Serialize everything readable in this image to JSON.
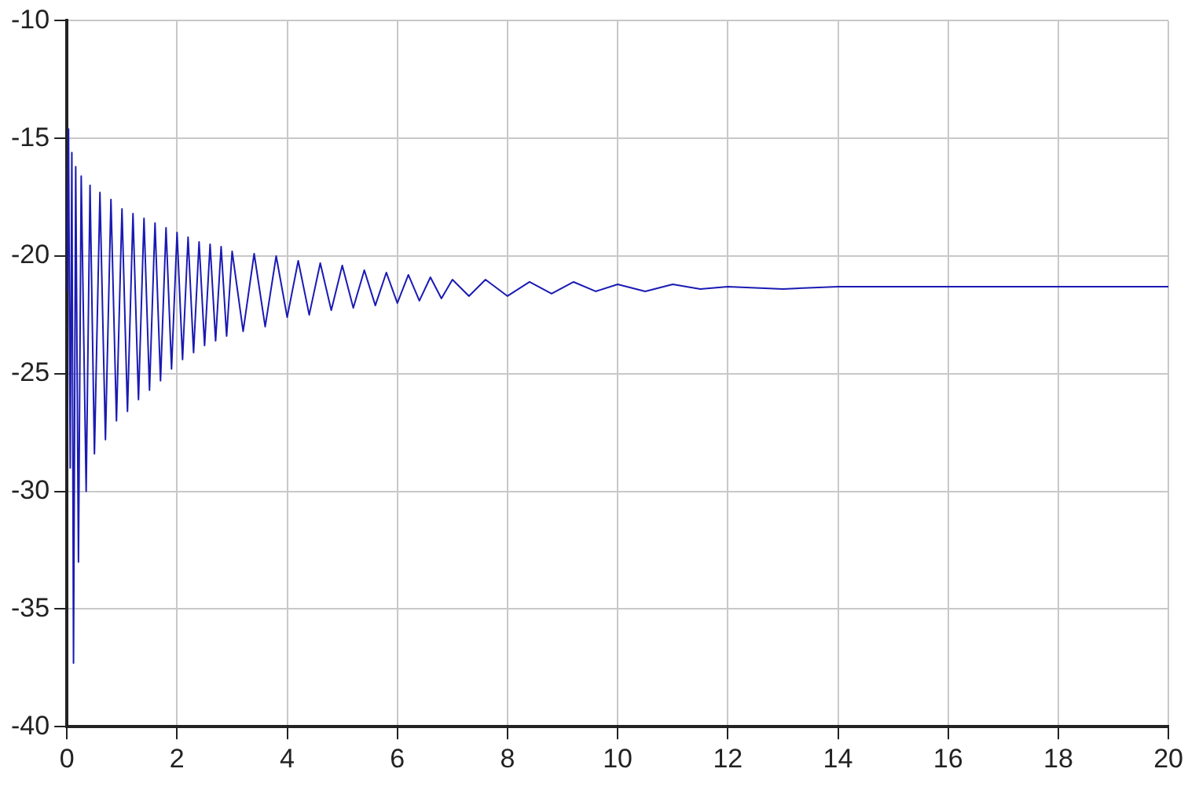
{
  "chart_data": {
    "type": "line",
    "x": [
      0,
      0.03,
      0.06,
      0.09,
      0.12,
      0.16,
      0.21,
      0.26,
      0.35,
      0.42,
      0.5,
      0.6,
      0.7,
      0.8,
      0.9,
      1.0,
      1.1,
      1.2,
      1.3,
      1.4,
      1.5,
      1.6,
      1.7,
      1.8,
      1.9,
      2.0,
      2.1,
      2.2,
      2.3,
      2.4,
      2.5,
      2.6,
      2.7,
      2.8,
      2.9,
      3.0,
      3.2,
      3.4,
      3.6,
      3.8,
      4.0,
      4.2,
      4.4,
      4.6,
      4.8,
      5.0,
      5.2,
      5.4,
      5.6,
      5.8,
      6.0,
      6.2,
      6.4,
      6.6,
      6.8,
      7.0,
      7.3,
      7.6,
      8.0,
      8.4,
      8.8,
      9.2,
      9.6,
      10.0,
      10.5,
      11,
      11.5,
      12,
      13,
      14,
      16,
      18,
      20
    ],
    "series": [
      {
        "color": "#1a1ab4",
        "values": [
          -21.5,
          -14.6,
          -29.0,
          -15.6,
          -37.3,
          -16.2,
          -33.0,
          -16.6,
          -30.0,
          -17.0,
          -28.4,
          -17.3,
          -27.8,
          -17.6,
          -27.0,
          -18.0,
          -26.6,
          -18.2,
          -26.1,
          -18.4,
          -25.7,
          -18.6,
          -25.3,
          -18.8,
          -24.8,
          -19.0,
          -24.4,
          -19.2,
          -24.1,
          -19.4,
          -23.8,
          -19.5,
          -23.6,
          -19.6,
          -23.4,
          -19.8,
          -23.2,
          -19.9,
          -23.0,
          -20.0,
          -22.6,
          -20.2,
          -22.5,
          -20.3,
          -22.3,
          -20.4,
          -22.2,
          -20.6,
          -22.1,
          -20.7,
          -22.0,
          -20.8,
          -21.9,
          -20.9,
          -21.8,
          -21.0,
          -21.7,
          -21.0,
          -21.7,
          -21.1,
          -21.6,
          -21.1,
          -21.5,
          -21.2,
          -21.5,
          -21.2,
          -21.4,
          -21.3,
          -21.4,
          -21.3,
          -21.3,
          -21.3,
          -21.3
        ]
      }
    ],
    "xlim": [
      0,
      20
    ],
    "xticks": [
      0,
      2,
      4,
      6,
      8,
      10,
      12,
      14,
      16,
      18,
      20
    ],
    "ylim": [
      -40,
      -10
    ],
    "yticks": [
      -40,
      -35,
      -30,
      -25,
      -20,
      -15,
      -10
    ],
    "grid": true,
    "marker": "none",
    "line_style": "solid"
  }
}
